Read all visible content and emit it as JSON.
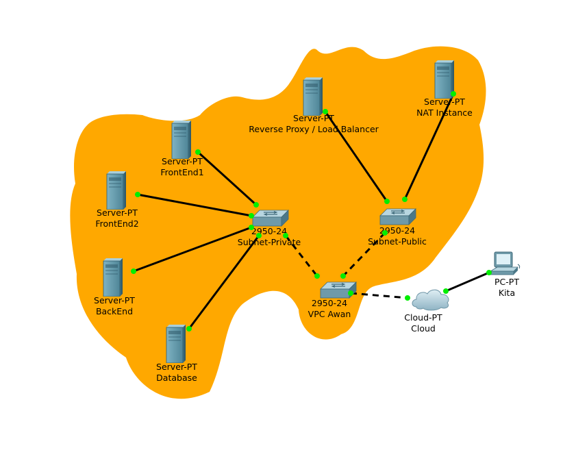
{
  "colors": {
    "region": "#ffa800",
    "link": "#000000",
    "port": "#00ee00",
    "server": "#5b8fa0",
    "switch": "#6f9aa9",
    "cloud": "#aecbd8"
  },
  "nodes": {
    "frontend1": {
      "model": "Server-PT",
      "name": "FrontEnd1",
      "icon": "server-icon"
    },
    "frontend2": {
      "model": "Server-PT",
      "name": "FrontEnd2",
      "icon": "server-icon"
    },
    "backend": {
      "model": "Server-PT",
      "name": "BackEnd",
      "icon": "server-icon"
    },
    "database": {
      "model": "Server-PT",
      "name": "Database",
      "icon": "server-icon"
    },
    "proxy": {
      "model": "Server-PT",
      "name": "Reverse Proxy / Load Balancer",
      "icon": "server-icon"
    },
    "nat": {
      "model": "Server-PT",
      "name": "NAT Instance",
      "icon": "server-icon"
    },
    "sw_private": {
      "model": "2950-24",
      "name": "Subnet-Private",
      "icon": "switch-icon"
    },
    "sw_public": {
      "model": "2950-24",
      "name": "Subnet-Public",
      "icon": "switch-icon"
    },
    "sw_vpc": {
      "model": "2950-24",
      "name": "VPC Awan",
      "icon": "switch-icon"
    },
    "cloud": {
      "model": "Cloud-PT",
      "name": "Cloud",
      "icon": "cloud-icon"
    },
    "pc": {
      "model": "PC-PT",
      "name": "Kita",
      "icon": "pc-icon"
    }
  },
  "links": [
    {
      "from": "frontend1",
      "to": "sw_private",
      "style": "solid"
    },
    {
      "from": "frontend2",
      "to": "sw_private",
      "style": "solid"
    },
    {
      "from": "backend",
      "to": "sw_private",
      "style": "solid"
    },
    {
      "from": "database",
      "to": "sw_private",
      "style": "solid"
    },
    {
      "from": "proxy",
      "to": "sw_public",
      "style": "solid"
    },
    {
      "from": "nat",
      "to": "sw_public",
      "style": "solid"
    },
    {
      "from": "sw_private",
      "to": "sw_vpc",
      "style": "dashed"
    },
    {
      "from": "sw_public",
      "to": "sw_vpc",
      "style": "dashed"
    },
    {
      "from": "sw_vpc",
      "to": "cloud",
      "style": "dashed"
    },
    {
      "from": "cloud",
      "to": "pc",
      "style": "solid"
    }
  ]
}
